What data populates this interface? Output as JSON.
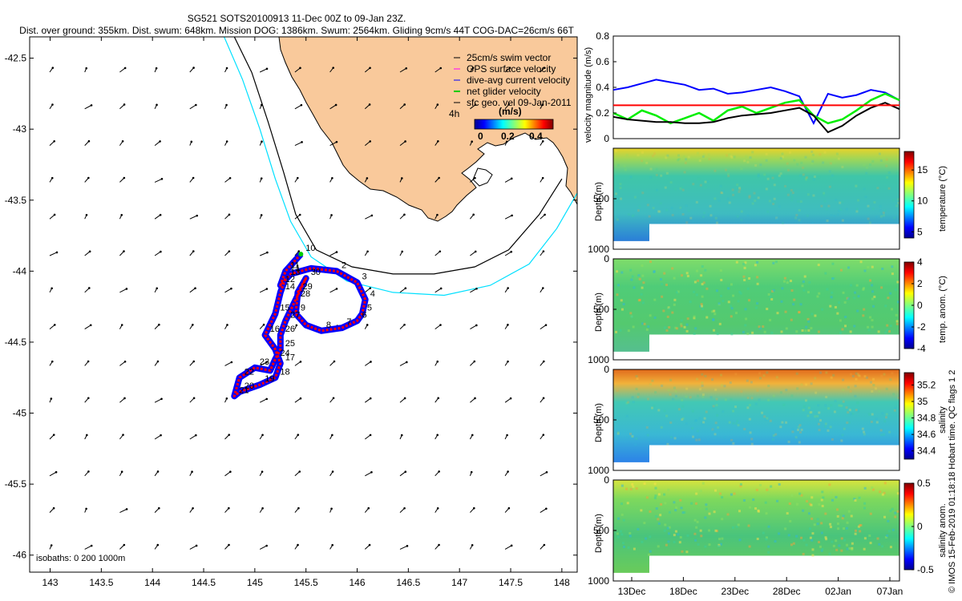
{
  "title_line1": "SG521 SOTS20100913 11-Dec 00Z to 09-Jan 23Z.",
  "title_line2": "Dist. over ground: 355km. Dist. swum: 648km. Mission DOG: 1386km. Swum: 2564km. Gliding 9cm/s 44T COG-DAC=26cm/s 66T",
  "side_note": "© IMOS 15-Feb-2019 01:18:18 Hobart time. QC flags 1  2",
  "colors": {
    "land": "#f9c99b",
    "isobath_200": "#00e0ff",
    "isobath_1000": "#000000",
    "glider_track_red": "#ff0000",
    "glider_track_blue": "#0000ff",
    "velocity_red": "#ff0000",
    "velocity_blue": "#0000ff",
    "velocity_green": "#00ee00",
    "velocity_black": "#000000"
  },
  "map": {
    "legend": [
      {
        "label": "25cm/s swim vector",
        "color": "#000000"
      },
      {
        "label": "GPS surface velocity",
        "color": "#ff00ff"
      },
      {
        "label": "dive-avg current velocity",
        "color": "#0000ff"
      },
      {
        "label": "net glider velocity",
        "color": "#00cc00"
      },
      {
        "label": "sfc geo. vel 09-Jan-2011",
        "color": "#000000"
      }
    ],
    "legend_time_label": "4h",
    "colorbar_title": "(m/s)",
    "colorbar_ticks": [
      "0",
      "0.2",
      "0.4"
    ],
    "isobath_note": "isobaths: 0   200   1000m",
    "track_day_labels": [
      "10",
      "11",
      "12",
      "1",
      "2",
      "3",
      "4",
      "5",
      "6",
      "7",
      "8",
      "9",
      "29",
      "30",
      "28",
      "27",
      "26",
      "25",
      "24",
      "23",
      "22",
      "21",
      "20",
      "19",
      "18",
      "17",
      "16",
      "15",
      "14",
      "13"
    ]
  },
  "chart_data": [
    {
      "type": "line",
      "title": "",
      "x": [
        143,
        143.5,
        144,
        144.5,
        145,
        145.5,
        146,
        146.5,
        147,
        147.5,
        148
      ],
      "xlabel": "",
      "ylabel": "",
      "xlim": [
        142.8,
        148.15
      ],
      "ylim": [
        -46.12,
        -42.35
      ],
      "x_ticks": [
        "143",
        "143.5",
        "144",
        "144.5",
        "145",
        "145.5",
        "146",
        "146.5",
        "147",
        "147.5",
        "148"
      ],
      "y_ticks": [
        "-42.5",
        "-43",
        "-43.5",
        "-44",
        "-44.5",
        "-45",
        "-45.5",
        "-46"
      ],
      "y_tick_values": [
        -42.5,
        -43,
        -43.5,
        -44,
        -44.5,
        -45,
        -45.5,
        -46
      ],
      "series": [
        {
          "name": "glider track",
          "lon": [
            145.45,
            145.3,
            145.25,
            145.35,
            145.55,
            145.8,
            146.0,
            146.08,
            146.05,
            146.0,
            145.85,
            145.65,
            145.5,
            145.4,
            145.42,
            145.5,
            145.4,
            145.3,
            145.25,
            145.25,
            145.2,
            145.15,
            145.0,
            144.85,
            144.8,
            144.85,
            145.05,
            145.2,
            145.25,
            145.2,
            145.1,
            145.2,
            145.25,
            145.3
          ],
          "lat": [
            -43.88,
            -44.0,
            -44.1,
            -44.02,
            -43.98,
            -44.0,
            -44.08,
            -44.2,
            -44.3,
            -44.35,
            -44.4,
            -44.42,
            -44.38,
            -44.3,
            -44.15,
            -44.05,
            -44.2,
            -44.35,
            -44.45,
            -44.55,
            -44.62,
            -44.7,
            -44.68,
            -44.75,
            -44.88,
            -44.85,
            -44.8,
            -44.75,
            -44.65,
            -44.55,
            -44.45,
            -44.3,
            -44.15,
            -44.05
          ]
        },
        {
          "name": "isobath 1000 m",
          "lon": [
            144.8,
            144.97,
            145.13,
            145.28,
            145.4,
            145.6,
            145.95,
            146.35,
            146.75,
            147.15,
            147.48,
            147.78,
            148.0
          ],
          "lat": [
            -42.35,
            -42.6,
            -42.95,
            -43.3,
            -43.6,
            -43.85,
            -43.97,
            -44.02,
            -44.02,
            -43.97,
            -43.85,
            -43.6,
            -43.35
          ]
        },
        {
          "name": "isobath 200 m",
          "lon": [
            144.7,
            144.88,
            145.05,
            145.2,
            145.35,
            145.55,
            145.9,
            146.35,
            146.85,
            147.3,
            147.68,
            147.95,
            148.15
          ],
          "lat": [
            -42.35,
            -42.65,
            -43.0,
            -43.35,
            -43.65,
            -43.9,
            -44.07,
            -44.15,
            -44.17,
            -44.1,
            -43.95,
            -43.7,
            -43.45
          ]
        }
      ]
    },
    {
      "type": "line",
      "title": "",
      "ylabel": "velocity magnitude (m/s)",
      "ylim": [
        0,
        0.8
      ],
      "y_ticks": [
        "0",
        "0.2",
        "0.4",
        "0.6",
        "0.8"
      ],
      "y_tick_values": [
        0,
        0.2,
        0.4,
        0.6,
        0.8
      ],
      "x": [
        0,
        0.05,
        0.1,
        0.15,
        0.2,
        0.25,
        0.3,
        0.35,
        0.4,
        0.45,
        0.5,
        0.55,
        0.6,
        0.65,
        0.7,
        0.75,
        0.8,
        0.85,
        0.9,
        0.95,
        1.0
      ],
      "series": [
        {
          "name": "dive-avg current velocity",
          "color": "#0000ff",
          "values": [
            0.38,
            0.4,
            0.43,
            0.46,
            0.44,
            0.42,
            0.38,
            0.39,
            0.35,
            0.36,
            0.38,
            0.4,
            0.37,
            0.33,
            0.12,
            0.35,
            0.32,
            0.34,
            0.38,
            0.36,
            0.3
          ]
        },
        {
          "name": "net glider velocity",
          "color": "#00ee00",
          "values": [
            0.2,
            0.15,
            0.22,
            0.18,
            0.12,
            0.16,
            0.2,
            0.14,
            0.22,
            0.25,
            0.2,
            0.24,
            0.28,
            0.3,
            0.18,
            0.12,
            0.15,
            0.22,
            0.3,
            0.35,
            0.3
          ]
        },
        {
          "name": "sfc geo. vel 09-Jan-2011",
          "color": "#000000",
          "values": [
            0.17,
            0.15,
            0.14,
            0.13,
            0.13,
            0.12,
            0.12,
            0.13,
            0.16,
            0.18,
            0.19,
            0.2,
            0.22,
            0.24,
            0.18,
            0.05,
            0.1,
            0.18,
            0.24,
            0.28,
            0.23
          ]
        },
        {
          "name": "",
          "color": "#ff0000",
          "values": [
            0.26,
            0.26,
            0.26,
            0.26,
            0.26,
            0.26,
            0.26,
            0.26,
            0.26,
            0.26,
            0.26,
            0.26,
            0.26,
            0.26,
            0.26,
            0.26,
            0.26,
            0.26,
            0.26,
            0.26,
            0.26
          ]
        }
      ]
    },
    {
      "type": "heatmap",
      "title": "",
      "ylabel": "Depth (m)",
      "ylim": [
        1000,
        0
      ],
      "y_ticks": [
        "500",
        "1000"
      ],
      "y_tick_values": [
        500,
        1000
      ],
      "colorbar_label": "temperature (°C)",
      "colorbar_ticks": [
        "15",
        "10",
        "5"
      ],
      "colorbar_tick_values": [
        15,
        10,
        5
      ],
      "colorbar_range": [
        4,
        18
      ]
    },
    {
      "type": "heatmap",
      "title": "",
      "ylabel": "Depth (m)",
      "ylim": [
        1000,
        0
      ],
      "y_ticks": [
        "0",
        "500",
        "1000"
      ],
      "y_tick_values": [
        0,
        500,
        1000
      ],
      "colorbar_label": "temp. anom. (°C)",
      "colorbar_ticks": [
        "4",
        "2",
        "0",
        "-2",
        "-4"
      ],
      "colorbar_tick_values": [
        4,
        2,
        0,
        -2,
        -4
      ],
      "colorbar_range": [
        -4,
        4
      ]
    },
    {
      "type": "heatmap",
      "title": "",
      "ylabel": "Depth (m)",
      "ylim": [
        1000,
        0
      ],
      "y_ticks": [
        "0",
        "500",
        "1000"
      ],
      "y_tick_values": [
        0,
        500,
        1000
      ],
      "colorbar_label": "salinity",
      "colorbar_ticks": [
        "35.2",
        "35",
        "34.8",
        "34.6",
        "34.4"
      ],
      "colorbar_tick_values": [
        35.2,
        35,
        34.8,
        34.6,
        34.4
      ],
      "colorbar_range": [
        34.3,
        35.35
      ]
    },
    {
      "type": "heatmap",
      "title": "",
      "ylabel": "Depth (m)",
      "ylim": [
        1000,
        0
      ],
      "y_ticks": [
        "0",
        "500",
        "1000"
      ],
      "y_tick_values": [
        0,
        500,
        1000
      ],
      "x_ticks": [
        "13Dec",
        "18Dec",
        "23Dec",
        "28Dec",
        "02Jan",
        "07Jan"
      ],
      "colorbar_label": "salinity anom.",
      "colorbar_ticks": [
        "0.5",
        "0",
        "-0.5"
      ],
      "colorbar_tick_values": [
        0.5,
        0,
        -0.5
      ],
      "colorbar_range": [
        -0.5,
        0.5
      ]
    }
  ]
}
